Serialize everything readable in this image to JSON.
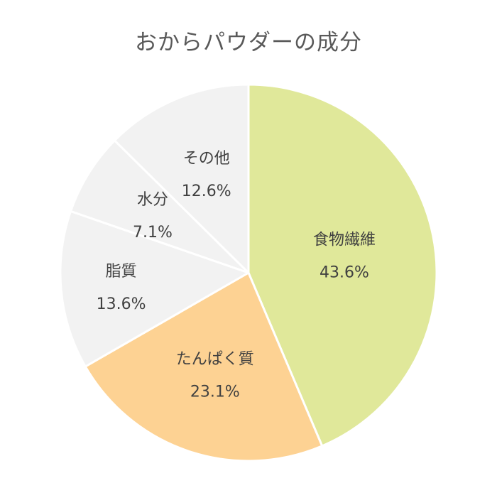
{
  "chart_data": {
    "type": "pie",
    "title": "おからパウダーの成分",
    "categories": [
      "食物繊維",
      "たんぱく質",
      "脂質",
      "水分",
      "その他"
    ],
    "values": [
      43.6,
      23.1,
      13.6,
      7.1,
      12.6
    ],
    "value_labels": [
      "43.6%",
      "23.1%",
      "13.6%",
      "7.1%",
      "12.6%"
    ],
    "colors": [
      "#E0E89A",
      "#FDD293",
      "#F2F2F2",
      "#F2F2F2",
      "#F2F2F2"
    ],
    "start_angle": "12 o'clock",
    "direction": "clockwise",
    "legend": "none",
    "labels_inside": true
  }
}
